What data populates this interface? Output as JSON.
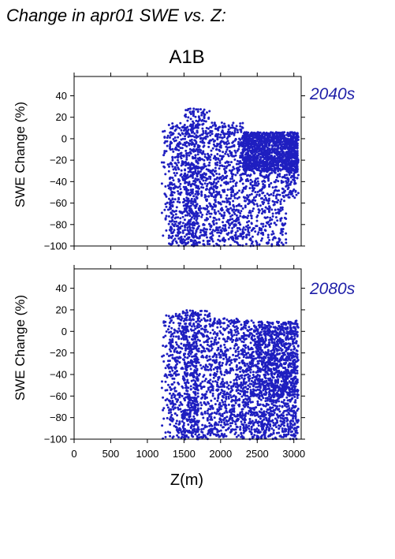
{
  "page_title": "Change in apr01 SWE vs. Z:",
  "scenario": "A1B",
  "colors": {
    "points": "#1f1fc0",
    "period_label": "#1f1fa8",
    "axis": "#000000"
  },
  "chart_data": [
    {
      "type": "scatter",
      "period_label": "2040s",
      "ylabel": "SWE Change (%)",
      "xlabel": "",
      "xlim": [
        0,
        3100
      ],
      "ylim": [
        -100,
        58
      ],
      "xticks": [
        0,
        500,
        1000,
        1500,
        2000,
        2500,
        3000
      ],
      "yticks": [
        40,
        20,
        0,
        -20,
        -40,
        -60,
        -80,
        -100
      ],
      "ytick_labels": [
        "40",
        "20",
        "0",
        "−20",
        "−40",
        "−60",
        "−80",
        "−100"
      ],
      "show_xtick_labels": false,
      "elevation_range": [
        1200,
        3060
      ],
      "clusters": [
        {
          "x": [
            1200,
            1350
          ],
          "y": [
            -100,
            10
          ],
          "n": 70
        },
        {
          "x": [
            1300,
            1700
          ],
          "y": [
            -100,
            15
          ],
          "n": 500
        },
        {
          "x": [
            1500,
            1850
          ],
          "y": [
            -100,
            28
          ],
          "n": 450
        },
        {
          "x": [
            1850,
            2300
          ],
          "y": [
            -100,
            15
          ],
          "n": 600
        },
        {
          "x": [
            2300,
            3060
          ],
          "y": [
            -30,
            6
          ],
          "n": 1300
        },
        {
          "x": [
            2300,
            2900
          ],
          "y": [
            -100,
            -30
          ],
          "n": 380
        },
        {
          "x": [
            2900,
            3060
          ],
          "y": [
            -55,
            5
          ],
          "n": 140
        }
      ]
    },
    {
      "type": "scatter",
      "period_label": "2080s",
      "ylabel": "SWE Change (%)",
      "xlabel": "Z(m)",
      "xlim": [
        0,
        3100
      ],
      "ylim": [
        -100,
        58
      ],
      "xticks": [
        0,
        500,
        1000,
        1500,
        2000,
        2500,
        3000
      ],
      "xtick_labels": [
        "0",
        "500",
        "1000",
        "1500",
        "2000",
        "2500",
        "3000"
      ],
      "yticks": [
        40,
        20,
        0,
        -20,
        -40,
        -60,
        -80,
        -100
      ],
      "ytick_labels": [
        "40",
        "20",
        "0",
        "−20",
        "−40",
        "−60",
        "−80",
        "−100"
      ],
      "show_xtick_labels": true,
      "elevation_range": [
        1200,
        3060
      ],
      "clusters": [
        {
          "x": [
            1200,
            1350
          ],
          "y": [
            -100,
            15
          ],
          "n": 70
        },
        {
          "x": [
            1300,
            1700
          ],
          "y": [
            -100,
            20
          ],
          "n": 480
        },
        {
          "x": [
            1500,
            1850
          ],
          "y": [
            -100,
            20
          ],
          "n": 420
        },
        {
          "x": [
            1850,
            2300
          ],
          "y": [
            -100,
            12
          ],
          "n": 600
        },
        {
          "x": [
            2300,
            3060
          ],
          "y": [
            -100,
            10
          ],
          "n": 1300
        },
        {
          "x": [
            2500,
            3060
          ],
          "y": [
            -60,
            5
          ],
          "n": 400
        }
      ]
    }
  ]
}
